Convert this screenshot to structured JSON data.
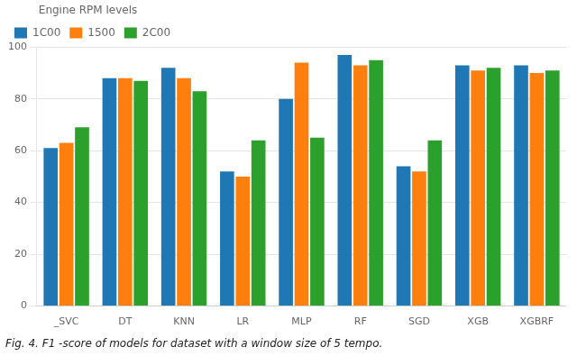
{
  "chart_data": {
    "type": "bar",
    "categories": [
      "_SVC",
      "DT",
      "KNN",
      "LR",
      "MLP",
      "RF",
      "SGD",
      "XGB",
      "XGBRF"
    ],
    "series": [
      {
        "name": "1C00",
        "color": "#1f77b4",
        "values": [
          61,
          88,
          92,
          52,
          80,
          97,
          54,
          93,
          93
        ]
      },
      {
        "name": "1500",
        "color": "#ff7f0e",
        "values": [
          63,
          88,
          88,
          50,
          94,
          93,
          52,
          91,
          90
        ]
      },
      {
        "name": "2C00",
        "color": "#2ca02c",
        "values": [
          69,
          87,
          83,
          64,
          65,
          95,
          64,
          92,
          91
        ]
      }
    ],
    "legend_title": "Engine RPM levels",
    "caption": "Fig. 4. F1 -score of models for dataset with a window size of 5 tempo.",
    "ylim": [
      0,
      100
    ],
    "yticks": [
      0,
      20,
      40,
      60,
      80,
      100
    ],
    "grid": true,
    "legend": "upper left"
  }
}
